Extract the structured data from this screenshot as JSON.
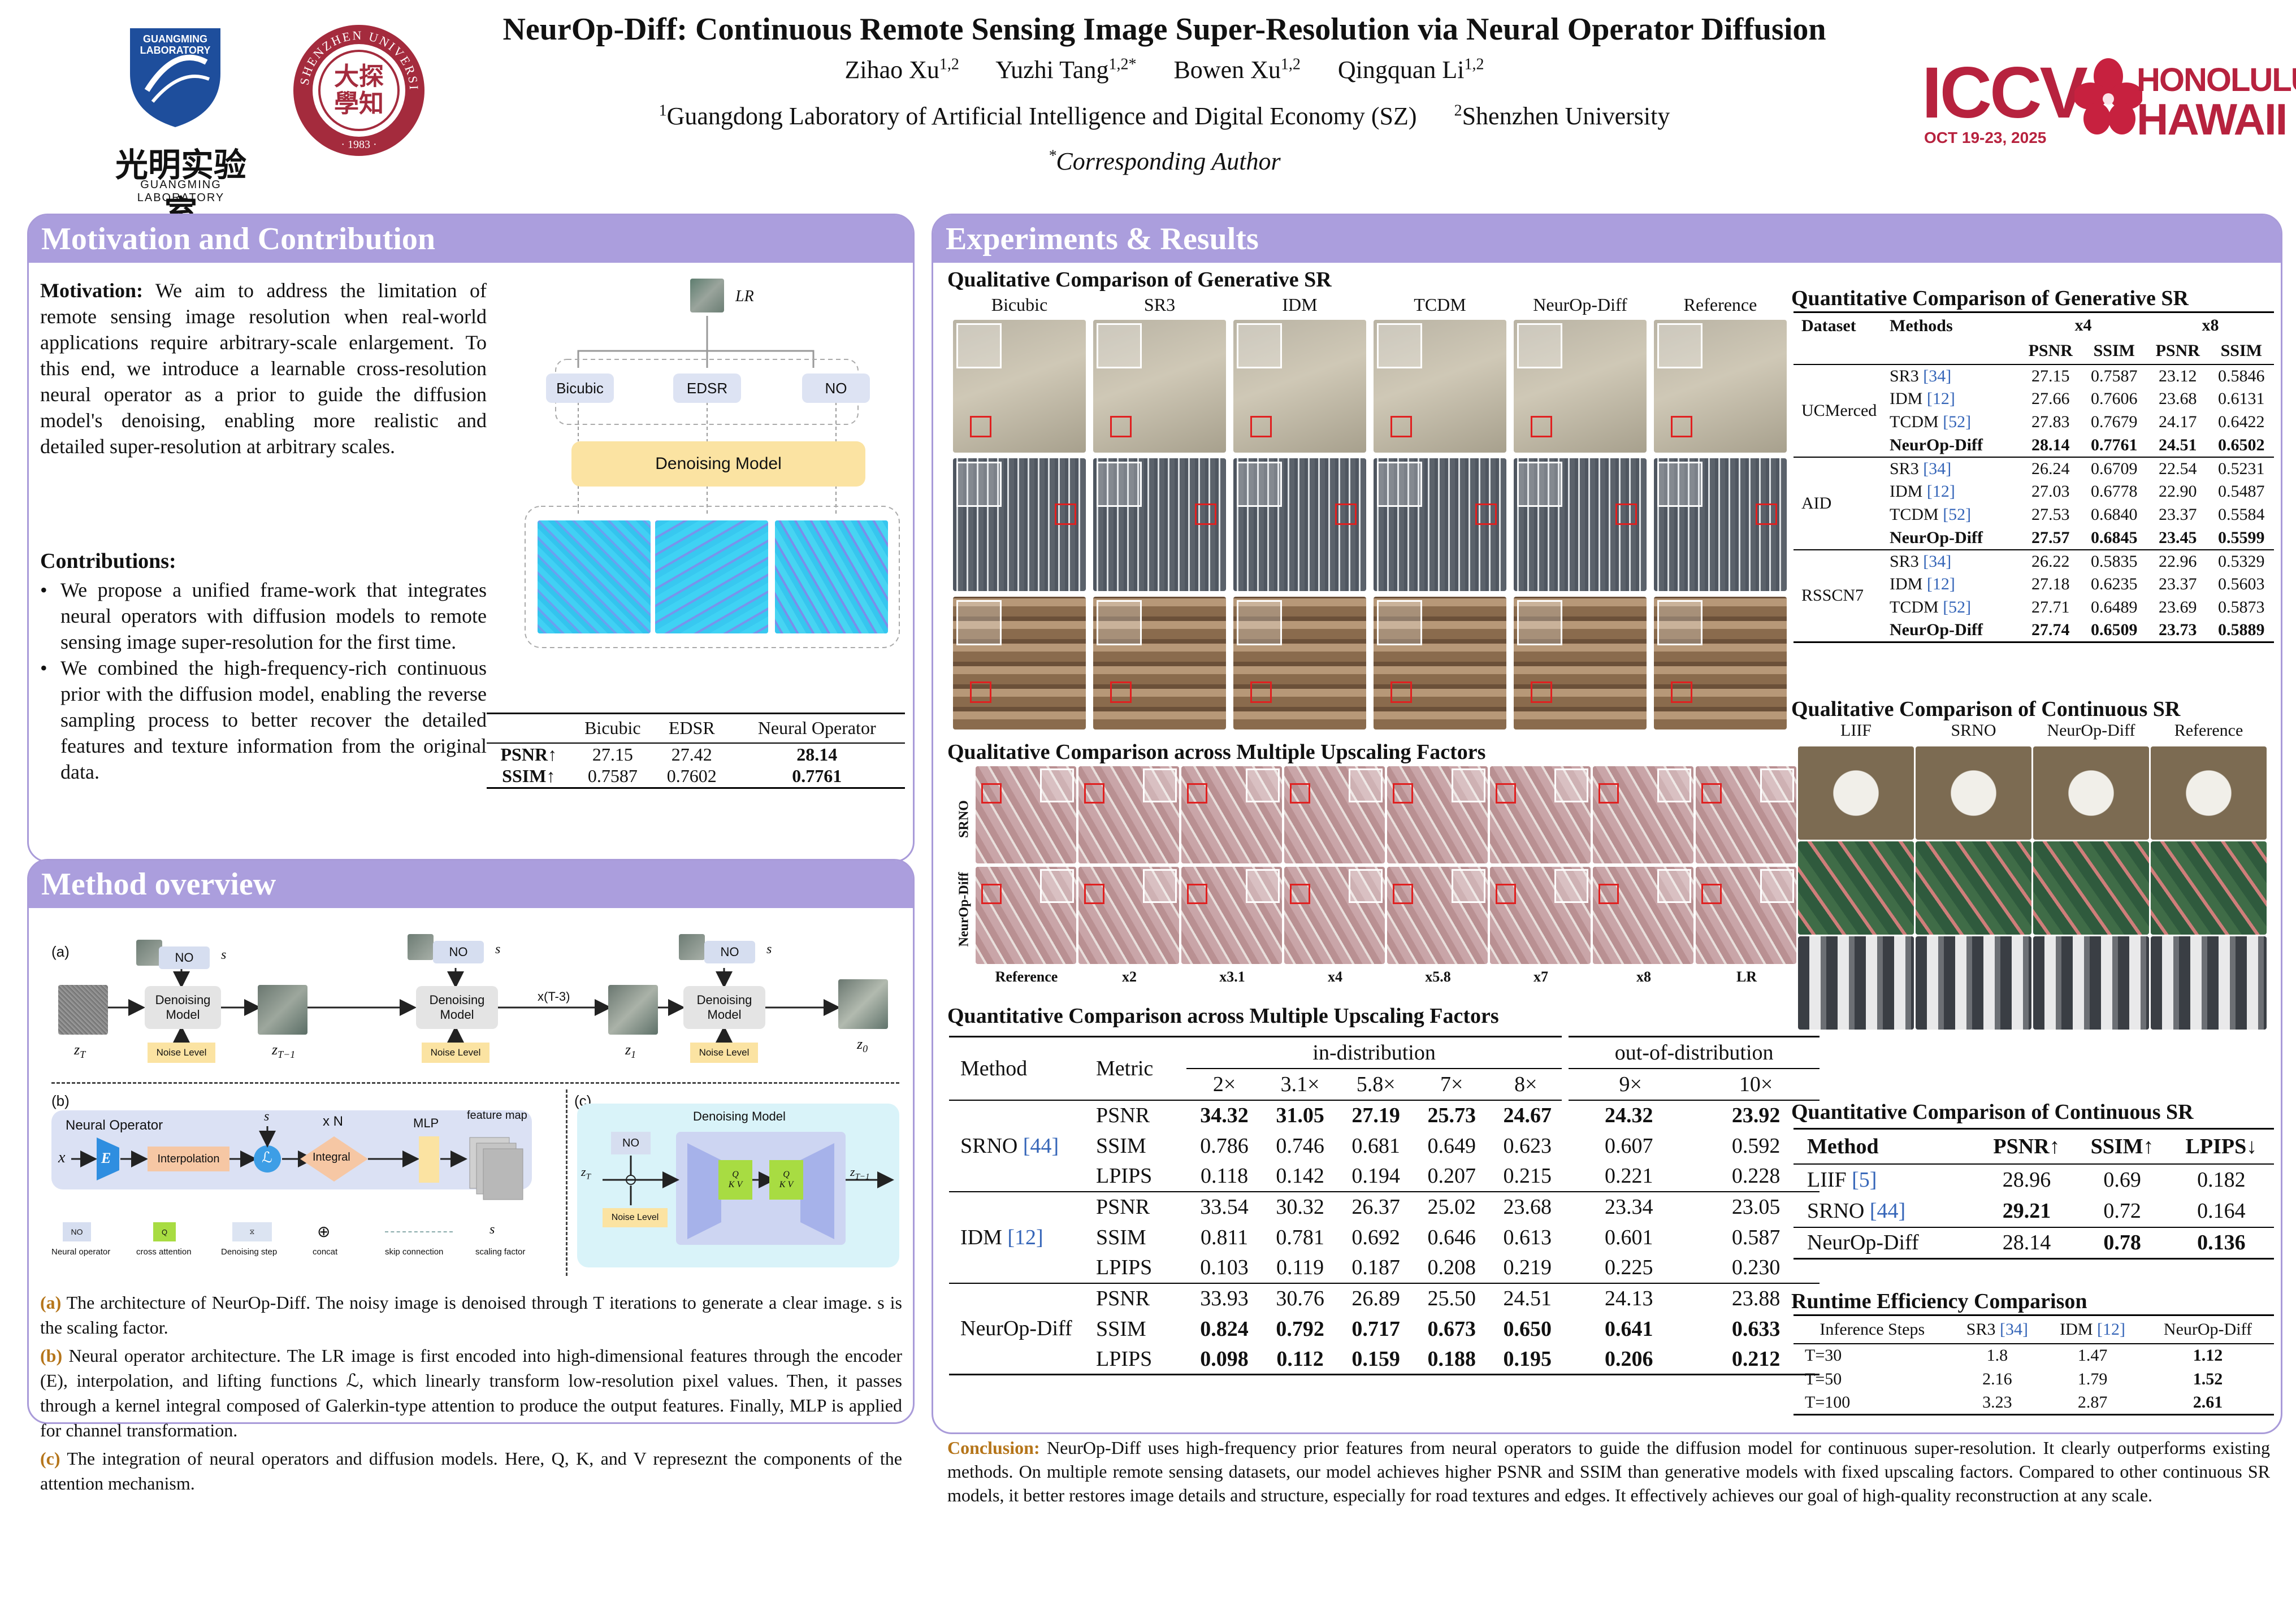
{
  "header": {
    "title": "NeurOp-Diff: Continuous Remote Sensing Image Super-Resolution via Neural Operator Diffusion",
    "authors": [
      {
        "name": "Zihao Xu",
        "sup": "1,2"
      },
      {
        "name": "Yuzhi Tang",
        "sup": "1,2*"
      },
      {
        "name": "Bowen Xu",
        "sup": "1,2"
      },
      {
        "name": "Qingquan Li",
        "sup": "1,2"
      }
    ],
    "aff1": "Guangdong Laboratory of Artificial Intelligence and Digital Economy (SZ)",
    "aff1_sup": "1",
    "aff2": "Shenzhen University",
    "aff2_sup": "2",
    "corr": "Corresponding Author",
    "corr_sup": "*"
  },
  "logos": {
    "guangming_top": "GUANGMING LABORATORY",
    "guangming_cn": "光明实验室",
    "guangming_en": "GUANGMING LABORATORY",
    "szu_ring": "SHENZHEN UNIVERSITY",
    "szu_year": "· 1983 ·",
    "iccv": "ICCV",
    "iccv_date": "OCT 19-23, 2025",
    "iccv_city1": "HONOLULU",
    "iccv_city2": "HAWAII"
  },
  "motivation": {
    "heading": "Motivation and Contribution",
    "mot_label": "Motivation:",
    "mot_text": "We aim to address the limitation of remote sensing image resolution when real-world applications require arbitrary-scale enlargement. To this end, we introduce a learnable cross-resolution neural operator as a prior to guide the diffusion model's denoising, enabling more realistic and detailed super-resolution at arbitrary scales.",
    "contrib_label": "Contributions:",
    "contrib": [
      "We propose a unified frame-work that integrates neural operators with diffusion models to remote sensing image super-resolution for the first time.",
      "We combined the high-frequency-rich continuous prior with the diffusion model, enabling the reverse sampling process to better recover the detailed features and texture information from the original data."
    ],
    "diagram": {
      "lr": "LR",
      "b1": "Bicubic",
      "b2": "EDSR",
      "b3": "NO",
      "den": "Denoising  Model"
    },
    "table": {
      "cols": [
        "",
        "Bicubic",
        "EDSR",
        "Neural Operator"
      ],
      "rows": [
        [
          "PSNR↑",
          "27.15",
          "27.42",
          "28.14"
        ],
        [
          "SSIM↑",
          "0.7587",
          "0.7602",
          "0.7761"
        ]
      ]
    }
  },
  "method": {
    "heading": "Method overview",
    "fig": {
      "a": "(a)",
      "b": "(b)",
      "c": "(c)",
      "no": "NO",
      "s": "s",
      "den1": "Denoising",
      "den2": "Model",
      "noise": "Noise Level",
      "xt3": "x(T-3)",
      "zT": "z",
      "zT_sub": "T",
      "zT1_sub": "T−1",
      "z1_sub": "1",
      "z0_sub": "0",
      "no_title": "Neural Operator",
      "x": "x",
      "E": "E",
      "interp": "Interpolation",
      "L": "ℒ",
      "xn": "x N",
      "integral": "Integral",
      "mlp": "MLP",
      "fmap": "feature map",
      "den_title": "Denoising Model",
      "q": "Q",
      "kv": "K V",
      "legend": [
        "Neural operator",
        "cross attention",
        "Denoising step",
        "concat",
        "skip connection",
        "scaling factor"
      ]
    },
    "captions": [
      {
        "label": "(a)",
        "text": " The architecture of NeurOp-Diff. The noisy image is denoised through T iterations to generate a clear image. s is the scaling factor."
      },
      {
        "label": "(b)",
        "text": " Neural operator architecture. The LR image is first encoded into high-dimensional features through the encoder (E), interpolation, and lifting functions ℒ, which linearly transform low-resolution pixel values. Then, it passes through a kernel integral composed of Galerkin-type attention to produce the output features. Finally, MLP is applied for channel transformation."
      },
      {
        "label": "(c)",
        "text": " The integration of neural operators and diffusion models. Here, Q, K, and V represeznt the components of the attention mechanism."
      }
    ]
  },
  "experiments": {
    "heading": "Experiments & Results",
    "qual_gen_title": "Qualitative Comparison of Generative SR",
    "qual_gen_cols": [
      "Bicubic",
      "SR3",
      "IDM",
      "TCDM",
      "NeurOp-Diff",
      "Reference"
    ],
    "qual_multi_title": "Qualitative Comparison across Multiple Upscaling Factors",
    "qual_multi_rows": [
      "SRNO",
      "NeurOp-Diff"
    ],
    "qual_multi_cols": [
      "Reference",
      "x2",
      "x3.1",
      "x4",
      "x5.8",
      "x7",
      "x8",
      "LR"
    ],
    "quant_multi_title": "Quantitative Comparison across Multiple Upscaling Factors",
    "quant_multi": {
      "h_method": "Method",
      "h_metric": "Metric",
      "h_in": "in-distribution",
      "h_out": "out-of-distribution",
      "scales": [
        "2×",
        "3.1×",
        "5.8×",
        "7×",
        "8×",
        "9×",
        "10×"
      ],
      "groups": [
        {
          "method": "SRNO",
          "cite": "[44]",
          "rows": [
            {
              "metric": "PSNR",
              "vals": [
                "34.32",
                "31.05",
                "27.19",
                "25.73",
                "24.67",
                "24.32",
                "23.92"
              ],
              "bold": [
                1,
                1,
                1,
                1,
                1,
                1,
                1
              ]
            },
            {
              "metric": "SSIM",
              "vals": [
                "0.786",
                "0.746",
                "0.681",
                "0.649",
                "0.623",
                "0.607",
                "0.592"
              ],
              "bold": [
                0,
                0,
                0,
                0,
                0,
                0,
                0
              ]
            },
            {
              "metric": "LPIPS",
              "vals": [
                "0.118",
                "0.142",
                "0.194",
                "0.207",
                "0.215",
                "0.221",
                "0.228"
              ],
              "bold": [
                0,
                0,
                0,
                0,
                0,
                0,
                0
              ]
            }
          ]
        },
        {
          "method": "IDM",
          "cite": "[12]",
          "rows": [
            {
              "metric": "PSNR",
              "vals": [
                "33.54",
                "30.32",
                "26.37",
                "25.02",
                "23.68",
                "23.34",
                "23.05"
              ],
              "bold": [
                0,
                0,
                0,
                0,
                0,
                0,
                0
              ]
            },
            {
              "metric": "SSIM",
              "vals": [
                "0.811",
                "0.781",
                "0.692",
                "0.646",
                "0.613",
                "0.601",
                "0.587"
              ],
              "bold": [
                0,
                0,
                0,
                0,
                0,
                0,
                0
              ]
            },
            {
              "metric": "LPIPS",
              "vals": [
                "0.103",
                "0.119",
                "0.187",
                "0.208",
                "0.219",
                "0.225",
                "0.230"
              ],
              "bold": [
                0,
                0,
                0,
                0,
                0,
                0,
                0
              ]
            }
          ]
        },
        {
          "method": "NeurOp-Diff",
          "cite": "",
          "rows": [
            {
              "metric": "PSNR",
              "vals": [
                "33.93",
                "30.76",
                "26.89",
                "25.50",
                "24.51",
                "24.13",
                "23.88"
              ],
              "bold": [
                0,
                0,
                0,
                0,
                0,
                0,
                0
              ]
            },
            {
              "metric": "SSIM",
              "vals": [
                "0.824",
                "0.792",
                "0.717",
                "0.673",
                "0.650",
                "0.641",
                "0.633"
              ],
              "bold": [
                1,
                1,
                1,
                1,
                1,
                1,
                1
              ]
            },
            {
              "metric": "LPIPS",
              "vals": [
                "0.098",
                "0.112",
                "0.159",
                "0.188",
                "0.195",
                "0.206",
                "0.212"
              ],
              "bold": [
                1,
                1,
                1,
                1,
                1,
                1,
                1
              ]
            }
          ]
        }
      ]
    },
    "quant_gen_title": "Quantitative Comparison of Generative SR",
    "quant_gen": {
      "h_dataset": "Dataset",
      "h_methods": "Methods",
      "h_x4": "x4",
      "h_x8": "x8",
      "h_psnr": "PSNR",
      "h_ssim": "SSIM",
      "groups": [
        {
          "dataset": "UCMerced",
          "rows": [
            {
              "m": "SR3",
              "cite": "[34]",
              "v": [
                "27.15",
                "0.7587",
                "23.12",
                "0.5846"
              ],
              "bold": false
            },
            {
              "m": "IDM",
              "cite": "[12]",
              "v": [
                "27.66",
                "0.7606",
                "23.68",
                "0.6131"
              ],
              "bold": false
            },
            {
              "m": "TCDM",
              "cite": "[52]",
              "v": [
                "27.83",
                "0.7679",
                "24.17",
                "0.6422"
              ],
              "bold": false
            },
            {
              "m": "NeurOp-Diff",
              "cite": "",
              "v": [
                "28.14",
                "0.7761",
                "24.51",
                "0.6502"
              ],
              "bold": true
            }
          ]
        },
        {
          "dataset": "AID",
          "rows": [
            {
              "m": "SR3",
              "cite": "[34]",
              "v": [
                "26.24",
                "0.6709",
                "22.54",
                "0.5231"
              ],
              "bold": false
            },
            {
              "m": "IDM",
              "cite": "[12]",
              "v": [
                "27.03",
                "0.6778",
                "22.90",
                "0.5487"
              ],
              "bold": false
            },
            {
              "m": "TCDM",
              "cite": "[52]",
              "v": [
                "27.53",
                "0.6840",
                "23.37",
                "0.5584"
              ],
              "bold": false
            },
            {
              "m": "NeurOp-Diff",
              "cite": "",
              "v": [
                "27.57",
                "0.6845",
                "23.45",
                "0.5599"
              ],
              "bold": true
            }
          ]
        },
        {
          "dataset": "RSSCN7",
          "rows": [
            {
              "m": "SR3",
              "cite": "[34]",
              "v": [
                "26.22",
                "0.5835",
                "22.96",
                "0.5329"
              ],
              "bold": false
            },
            {
              "m": "IDM",
              "cite": "[12]",
              "v": [
                "27.18",
                "0.6235",
                "23.37",
                "0.5603"
              ],
              "bold": false
            },
            {
              "m": "TCDM",
              "cite": "[52]",
              "v": [
                "27.71",
                "0.6489",
                "23.69",
                "0.5873"
              ],
              "bold": false
            },
            {
              "m": "NeurOp-Diff",
              "cite": "",
              "v": [
                "27.74",
                "0.6509",
                "23.73",
                "0.5889"
              ],
              "bold": true
            }
          ]
        }
      ]
    },
    "qual_cont_title": "Qualitative Comparison of Continuous SR",
    "qual_cont_cols": [
      "LIIF",
      "SRNO",
      "NeurOp-Diff",
      "Reference"
    ],
    "quant_cont_title": "Quantitative Comparison of Continuous SR",
    "quant_cont": {
      "cols": [
        "Method",
        "PSNR↑",
        "SSIM↑",
        "LPIPS↓"
      ],
      "rows": [
        {
          "m": "LIIF",
          "cite": "[5]",
          "v": [
            "28.96",
            "0.69",
            "0.182"
          ],
          "bold": [
            0,
            0,
            0
          ]
        },
        {
          "m": "SRNO",
          "cite": "[44]",
          "v": [
            "29.21",
            "0.72",
            "0.164"
          ],
          "bold": [
            1,
            0,
            0
          ]
        },
        {
          "m": "NeurOp-Diff",
          "cite": "",
          "v": [
            "28.14",
            "0.78",
            "0.136"
          ],
          "bold": [
            0,
            1,
            1
          ]
        }
      ]
    },
    "runtime_title": "Runtime Efficiency Comparison",
    "runtime": {
      "cols": [
        "Inference Steps",
        "SR3",
        "IDM",
        "NeurOp-Diff"
      ],
      "col_cites": [
        "",
        "[34]",
        "[12]",
        ""
      ],
      "rows": [
        {
          "s": "T=30",
          "v": [
            "1.8",
            "1.47",
            "1.12"
          ]
        },
        {
          "s": "T=50",
          "v": [
            "2.16",
            "1.79",
            "1.52"
          ]
        },
        {
          "s": "T=100",
          "v": [
            "3.23",
            "2.87",
            "2.61"
          ]
        }
      ]
    },
    "conclusion_label": "Conclusion:",
    "conclusion": " NeurOp-Diff uses high-frequency prior features from neural operators to guide the diffusion model for continuous super-resolution. It clearly outperforms existing methods. On multiple remote sensing datasets, our model achieves higher PSNR and SSIM than generative models with fixed upscaling factors. Compared to other continuous SR models, it better restores image details and structure, especially for road textures and edges. It effectively achieves our goal of high-quality reconstruction at any scale."
  }
}
